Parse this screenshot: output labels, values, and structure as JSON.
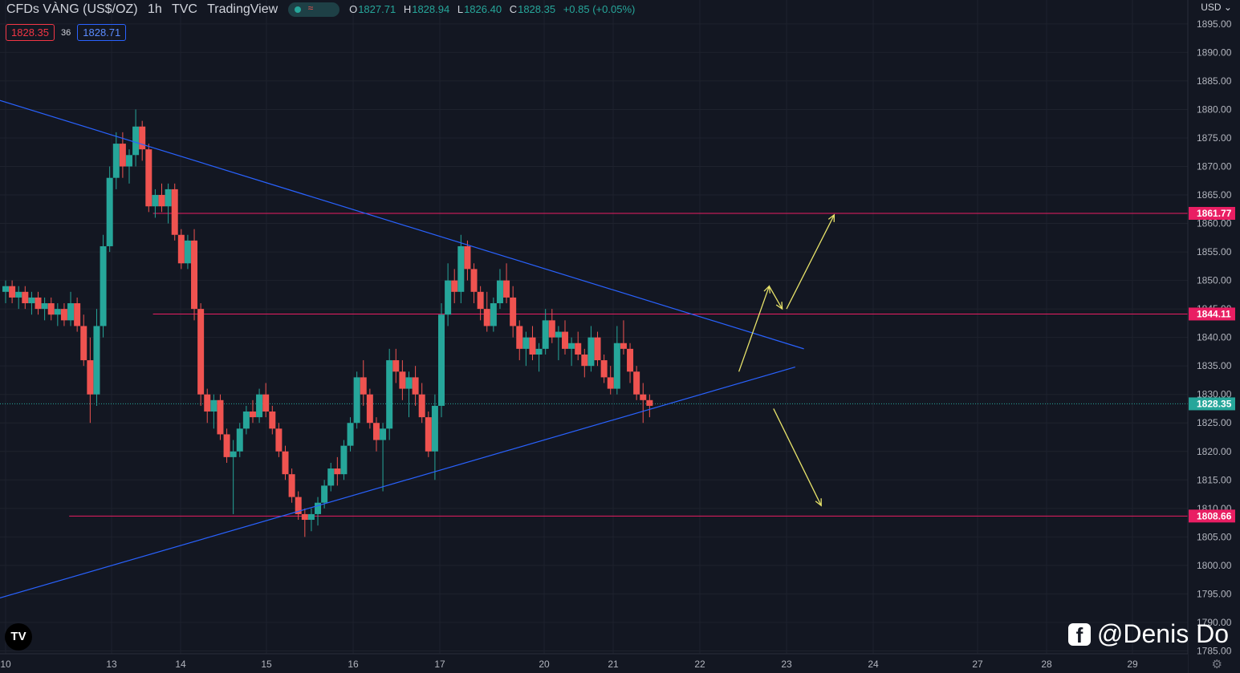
{
  "header": {
    "symbol": "CFDs VÀNG (US$/OZ)",
    "interval": "1h",
    "source": "TVC",
    "platform": "TradingView",
    "ohlc": {
      "o_label": "O",
      "o": "1827.71",
      "h_label": "H",
      "h": "1828.94",
      "l_label": "L",
      "l": "1826.40",
      "c_label": "C",
      "c": "1828.35",
      "change": "+0.85 (+0.05%)"
    }
  },
  "trade": {
    "sell": "1828.35",
    "spread": "36",
    "buy": "1828.71"
  },
  "currency_label": "USD ⌄",
  "watermark": {
    "fb_glyph": "f",
    "text": "@Denis Do"
  },
  "tv_logo": "TV",
  "colors": {
    "up": "#26a69a",
    "down": "#ef5350",
    "bg": "#131722",
    "trend": "#2962ff",
    "level": "#e91e63",
    "arrow": "#e8e36a"
  },
  "chart_data": {
    "type": "candlestick",
    "x_ticks": [
      {
        "label": "10",
        "t": 0
      },
      {
        "label": "13",
        "t": 1
      },
      {
        "label": "14",
        "t": 2
      },
      {
        "label": "15",
        "t": 3
      },
      {
        "label": "16",
        "t": 4
      },
      {
        "label": "17",
        "t": 5
      },
      {
        "label": "20",
        "t": 6
      },
      {
        "label": "21",
        "t": 7
      },
      {
        "label": "22",
        "t": 8
      },
      {
        "label": "23",
        "t": 9
      },
      {
        "label": "24",
        "t": 10
      },
      {
        "label": "27",
        "t": 11
      },
      {
        "label": "28",
        "t": 12
      },
      {
        "label": "29",
        "t": 13
      }
    ],
    "y_ticks": [
      1785,
      1790,
      1795,
      1800,
      1805,
      1810,
      1815,
      1820,
      1825,
      1830,
      1835,
      1840,
      1845,
      1850,
      1855,
      1860,
      1865,
      1870,
      1875,
      1880,
      1885,
      1890,
      1895
    ],
    "ylim": [
      1784.5,
      1898.5
    ],
    "current_price": 1828.35,
    "levels": [
      {
        "value": 1861.77,
        "label": "1861.77",
        "start_t": 1.6
      },
      {
        "value": 1844.11,
        "label": "1844.11",
        "start_t": 1.6
      },
      {
        "value": 1808.66,
        "label": "1808.66",
        "start_t": 0.6
      }
    ],
    "trendlines": [
      {
        "name": "upper",
        "t1": -0.3,
        "p1": 1883,
        "t2": 9.2,
        "p2": 1838
      },
      {
        "name": "lower",
        "t1": -0.2,
        "p1": 1793.5,
        "t2": 9.1,
        "p2": 1834.8
      }
    ],
    "arrows": [
      {
        "t1": 8.45,
        "p1": 1834,
        "t2": 8.8,
        "p2": 1849
      },
      {
        "t1": 8.8,
        "p1": 1849,
        "t2": 8.95,
        "p2": 1845
      },
      {
        "t1": 9.0,
        "p1": 1845,
        "t2": 9.55,
        "p2": 1861.5
      },
      {
        "t1": 8.85,
        "p1": 1827.5,
        "t2": 9.4,
        "p2": 1810.5
      }
    ],
    "candles": [
      [
        1848,
        1850,
        1846,
        1849
      ],
      [
        1849,
        1850,
        1846,
        1847
      ],
      [
        1847,
        1849,
        1845,
        1848
      ],
      [
        1848,
        1849,
        1845,
        1846
      ],
      [
        1846,
        1848,
        1844,
        1847
      ],
      [
        1847,
        1848,
        1844,
        1845
      ],
      [
        1845,
        1847,
        1843,
        1846
      ],
      [
        1846,
        1847,
        1843,
        1844
      ],
      [
        1844,
        1846,
        1842,
        1845
      ],
      [
        1845,
        1846,
        1842,
        1843
      ],
      [
        1843,
        1848,
        1842,
        1846
      ],
      [
        1846,
        1847,
        1841,
        1842
      ],
      [
        1842,
        1844,
        1835,
        1836
      ],
      [
        1836,
        1840,
        1825,
        1830
      ],
      [
        1830,
        1845,
        1828,
        1842
      ],
      [
        1842,
        1858,
        1840,
        1856
      ],
      [
        1856,
        1870,
        1855,
        1868
      ],
      [
        1868,
        1876,
        1866,
        1874
      ],
      [
        1874,
        1876,
        1868,
        1870
      ],
      [
        1870,
        1873,
        1867,
        1872
      ],
      [
        1872,
        1880,
        1870,
        1877
      ],
      [
        1877,
        1878,
        1871,
        1873
      ],
      [
        1873,
        1874,
        1862,
        1863
      ],
      [
        1863,
        1866,
        1861,
        1865
      ],
      [
        1865,
        1867,
        1862,
        1863
      ],
      [
        1863,
        1867,
        1860,
        1866
      ],
      [
        1866,
        1867,
        1857,
        1858
      ],
      [
        1858,
        1859,
        1852,
        1853
      ],
      [
        1853,
        1858,
        1852,
        1857
      ],
      [
        1857,
        1859,
        1843,
        1845
      ],
      [
        1845,
        1846,
        1828,
        1830
      ],
      [
        1830,
        1831,
        1825,
        1827
      ],
      [
        1827,
        1830,
        1824,
        1829
      ],
      [
        1829,
        1830,
        1822,
        1823
      ],
      [
        1823,
        1824,
        1818,
        1819
      ],
      [
        1819,
        1822,
        1809,
        1820
      ],
      [
        1820,
        1825,
        1819,
        1824
      ],
      [
        1824,
        1828,
        1823,
        1827
      ],
      [
        1827,
        1829,
        1825,
        1826
      ],
      [
        1826,
        1831,
        1825,
        1830
      ],
      [
        1830,
        1832,
        1826,
        1827
      ],
      [
        1827,
        1828,
        1823,
        1824
      ],
      [
        1824,
        1825,
        1819,
        1820
      ],
      [
        1820,
        1821,
        1815,
        1816
      ],
      [
        1816,
        1817,
        1811,
        1812
      ],
      [
        1812,
        1813,
        1808,
        1809
      ],
      [
        1809,
        1810,
        1805,
        1808
      ],
      [
        1808,
        1810,
        1806,
        1809
      ],
      [
        1809,
        1812,
        1807,
        1811
      ],
      [
        1811,
        1815,
        1810,
        1814
      ],
      [
        1814,
        1818,
        1813,
        1817
      ],
      [
        1817,
        1819,
        1814,
        1816
      ],
      [
        1816,
        1822,
        1815,
        1821
      ],
      [
        1821,
        1826,
        1820,
        1825
      ],
      [
        1825,
        1834,
        1824,
        1833
      ],
      [
        1833,
        1836,
        1828,
        1830
      ],
      [
        1830,
        1831,
        1824,
        1825
      ],
      [
        1825,
        1826,
        1820,
        1822
      ],
      [
        1822,
        1825,
        1813,
        1824
      ],
      [
        1824,
        1838,
        1822,
        1836
      ],
      [
        1836,
        1838,
        1832,
        1834
      ],
      [
        1834,
        1836,
        1829,
        1831
      ],
      [
        1831,
        1834,
        1826,
        1833
      ],
      [
        1833,
        1835,
        1828,
        1830
      ],
      [
        1830,
        1832,
        1825,
        1826
      ],
      [
        1826,
        1827,
        1819,
        1820
      ],
      [
        1820,
        1830,
        1815,
        1828
      ],
      [
        1828,
        1846,
        1826,
        1844
      ],
      [
        1844,
        1853,
        1842,
        1850
      ],
      [
        1850,
        1852,
        1846,
        1848
      ],
      [
        1848,
        1858,
        1846,
        1856
      ],
      [
        1856,
        1857,
        1850,
        1852
      ],
      [
        1852,
        1853,
        1846,
        1848
      ],
      [
        1848,
        1849,
        1843,
        1845
      ],
      [
        1845,
        1848,
        1841,
        1842
      ],
      [
        1842,
        1847,
        1841,
        1846
      ],
      [
        1846,
        1852,
        1845,
        1850
      ],
      [
        1850,
        1853,
        1846,
        1847
      ],
      [
        1847,
        1849,
        1840,
        1842
      ],
      [
        1842,
        1843,
        1836,
        1838
      ],
      [
        1838,
        1841,
        1835,
        1840
      ],
      [
        1840,
        1842,
        1836,
        1837
      ],
      [
        1837,
        1839,
        1834,
        1838
      ],
      [
        1838,
        1845,
        1837,
        1843
      ],
      [
        1843,
        1845,
        1839,
        1840
      ],
      [
        1840,
        1842,
        1836,
        1841
      ],
      [
        1841,
        1843,
        1837,
        1838
      ],
      [
        1838,
        1840,
        1835,
        1839
      ],
      [
        1839,
        1841,
        1836,
        1837
      ],
      [
        1837,
        1838,
        1833,
        1835
      ],
      [
        1835,
        1842,
        1834,
        1840
      ],
      [
        1840,
        1841,
        1835,
        1836
      ],
      [
        1836,
        1837,
        1832,
        1833
      ],
      [
        1833,
        1835,
        1830,
        1831
      ],
      [
        1831,
        1842,
        1830,
        1839
      ],
      [
        1839,
        1843,
        1837,
        1838
      ],
      [
        1838,
        1839,
        1832,
        1834
      ],
      [
        1834,
        1835,
        1829,
        1830
      ],
      [
        1830,
        1832,
        1825,
        1829
      ],
      [
        1829,
        1830,
        1826,
        1828
      ]
    ]
  }
}
